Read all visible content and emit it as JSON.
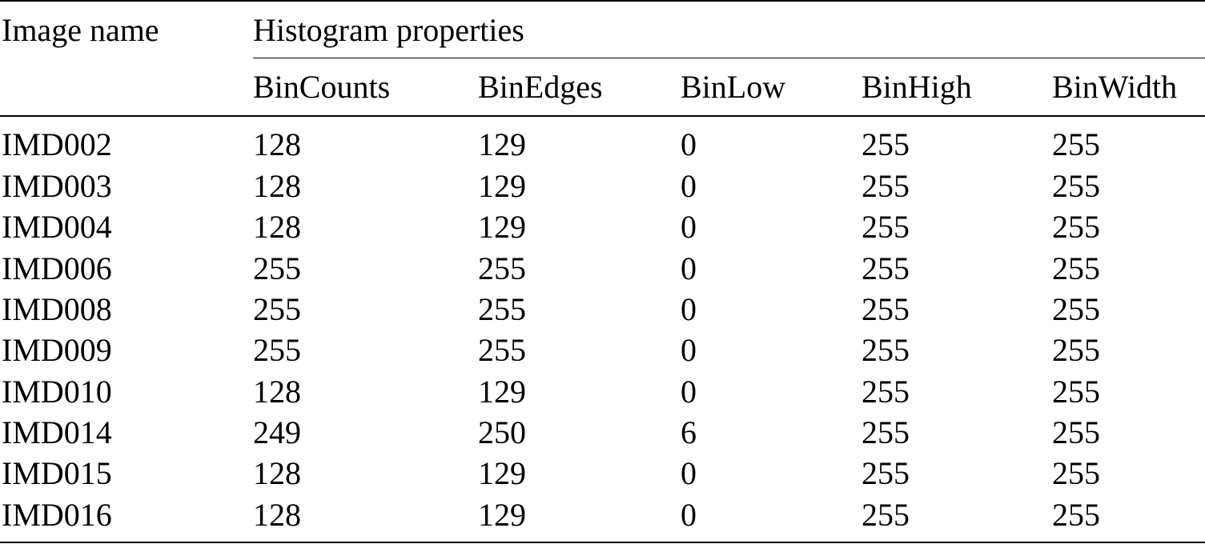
{
  "header": {
    "image_name": "Image name",
    "group_label": "Histogram properties",
    "columns": [
      "BinCounts",
      "BinEdges",
      "BinLow",
      "BinHigh",
      "BinWidth"
    ]
  },
  "rows": [
    {
      "name": "IMD002",
      "bin_counts": "128",
      "bin_edges": "129",
      "bin_low": "0",
      "bin_high": "255",
      "bin_width": "255"
    },
    {
      "name": "IMD003",
      "bin_counts": "128",
      "bin_edges": "129",
      "bin_low": "0",
      "bin_high": "255",
      "bin_width": "255"
    },
    {
      "name": "IMD004",
      "bin_counts": "128",
      "bin_edges": "129",
      "bin_low": "0",
      "bin_high": "255",
      "bin_width": "255"
    },
    {
      "name": "IMD006",
      "bin_counts": "255",
      "bin_edges": "255",
      "bin_low": "0",
      "bin_high": "255",
      "bin_width": "255"
    },
    {
      "name": "IMD008",
      "bin_counts": "255",
      "bin_edges": "255",
      "bin_low": "0",
      "bin_high": "255",
      "bin_width": "255"
    },
    {
      "name": "IMD009",
      "bin_counts": "255",
      "bin_edges": "255",
      "bin_low": "0",
      "bin_high": "255",
      "bin_width": "255"
    },
    {
      "name": "IMD010",
      "bin_counts": "128",
      "bin_edges": "129",
      "bin_low": "0",
      "bin_high": "255",
      "bin_width": "255"
    },
    {
      "name": "IMD014",
      "bin_counts": "249",
      "bin_edges": "250",
      "bin_low": "6",
      "bin_high": "255",
      "bin_width": "255"
    },
    {
      "name": "IMD015",
      "bin_counts": "128",
      "bin_edges": "129",
      "bin_low": "0",
      "bin_high": "255",
      "bin_width": "255"
    },
    {
      "name": "IMD016",
      "bin_counts": "128",
      "bin_edges": "129",
      "bin_low": "0",
      "bin_high": "255",
      "bin_width": "255"
    }
  ]
}
